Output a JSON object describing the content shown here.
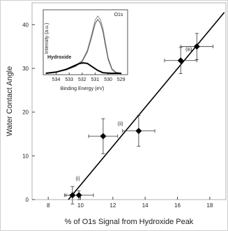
{
  "chart_data": [
    {
      "type": "scatter",
      "xlabel": "% of O1s Signal from Hydroxide Peak",
      "ylabel": "Water Contact Angle",
      "xlim": [
        7,
        19
      ],
      "ylim": [
        0,
        45
      ],
      "xticks": [
        8,
        10,
        12,
        14,
        16,
        18
      ],
      "yticks": [
        0,
        10,
        20,
        30,
        40
      ],
      "grid": false,
      "series": [
        {
          "marker": "diamond",
          "points": [
            {
              "x": 9.5,
              "y": 1.0,
              "xerr": 0.4,
              "yerr": 2.0
            },
            {
              "x": 9.9,
              "y": 1.0,
              "xerr": 0.9,
              "yerr": 1.0
            },
            {
              "x": 11.4,
              "y": 14.5,
              "xerr": 0.9,
              "yerr": 4.0
            },
            {
              "x": 13.6,
              "y": 15.7,
              "xerr": 1.0,
              "yerr": 3.5
            },
            {
              "x": 16.2,
              "y": 31.8,
              "xerr": 1.0,
              "yerr": 3.0
            },
            {
              "x": 17.2,
              "y": 35.0,
              "xerr": 1.0,
              "yerr": 3.0
            }
          ]
        }
      ],
      "fit_line": {
        "x": [
          9.25,
          18.9
        ],
        "y": [
          0,
          42.8
        ]
      },
      "annotations": [
        {
          "text": "(i)",
          "x": 9.7,
          "y": 4.5
        },
        {
          "text": "(ii)",
          "x": 12.3,
          "y": 17.0
        },
        {
          "text": "(iii)",
          "x": 16.5,
          "y": 34.0
        }
      ]
    },
    {
      "type": "line",
      "title": "O1s",
      "xlabel": "Binding Energy (eV)",
      "ylabel": "Intensity (a.u.)",
      "xlim": [
        535,
        528.5
      ],
      "xticks": [
        534,
        533,
        532,
        531,
        530,
        529
      ],
      "ylim": [
        0,
        1.05
      ],
      "annotations": [
        {
          "text": "Hydroxide",
          "x": 533.3,
          "y": 0.2
        }
      ],
      "series": [
        {
          "x": [
            534.8,
            534.0,
            533.2,
            532.5,
            532.0,
            531.6,
            531.3,
            531.0,
            530.8,
            530.6,
            530.4,
            530.2,
            530.0,
            529.7,
            529.4,
            529.0
          ],
          "y": [
            0.0,
            0.02,
            0.06,
            0.13,
            0.22,
            0.4,
            0.65,
            0.92,
            0.99,
            0.93,
            0.78,
            0.52,
            0.27,
            0.08,
            0.02,
            0.0
          ]
        },
        {
          "x": [
            534.8,
            534.0,
            533.2,
            532.5,
            532.0,
            531.6,
            531.3,
            531.0,
            530.8,
            530.6,
            530.4,
            530.2,
            530.0,
            529.7,
            529.4,
            529.0
          ],
          "y": [
            0.0,
            0.02,
            0.06,
            0.12,
            0.2,
            0.37,
            0.6,
            0.86,
            0.93,
            0.87,
            0.72,
            0.47,
            0.24,
            0.06,
            0.01,
            0.0
          ]
        },
        {
          "x": [
            534.8,
            534.0,
            533.2,
            532.6,
            532.2,
            531.9,
            531.6,
            531.2,
            530.8,
            530.4,
            529.8,
            529.0
          ],
          "y": [
            0.0,
            0.02,
            0.07,
            0.13,
            0.17,
            0.18,
            0.17,
            0.11,
            0.05,
            0.01,
            0.0,
            0.0
          ]
        }
      ]
    }
  ]
}
